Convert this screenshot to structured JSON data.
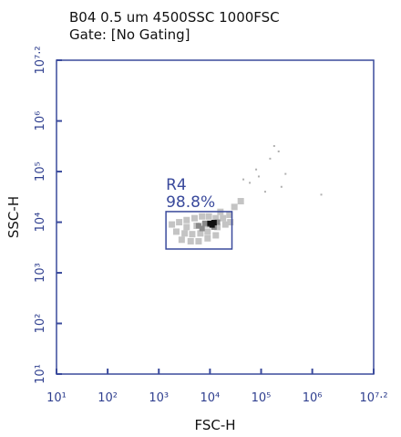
{
  "chart_data": {
    "type": "scatter",
    "title": "B04 0.5 um 4500SSC 1000FSC",
    "subtitle": "Gate: [No Gating]",
    "x_label": "FSC-H",
    "y_label": "SSC-H",
    "log_x": true,
    "log_y": true,
    "axis_color": "#3a4a9c",
    "xlim": [
      10,
      15848932
    ],
    "ylim": [
      10,
      15848932
    ],
    "xticks": [
      {
        "value": 10,
        "label": "10¹"
      },
      {
        "value": 100,
        "label": "10²"
      },
      {
        "value": 1000,
        "label": "10³"
      },
      {
        "value": 10000,
        "label": "10⁴"
      },
      {
        "value": 100000,
        "label": "10⁵"
      },
      {
        "value": 1000000,
        "label": "10⁶"
      },
      {
        "value": 15848932,
        "label": "10⁷·²"
      }
    ],
    "yticks": [
      {
        "value": 10,
        "label": "10¹"
      },
      {
        "value": 100,
        "label": "10²"
      },
      {
        "value": 1000,
        "label": "10³"
      },
      {
        "value": 10000,
        "label": "10⁴"
      },
      {
        "value": 100000,
        "label": "10⁵"
      },
      {
        "value": 1000000,
        "label": "10⁶"
      },
      {
        "value": 15848932,
        "label": "10⁷·²"
      }
    ],
    "layers": [
      {
        "color": "#c4c4c4",
        "size": 7,
        "x": [
          1800,
          2500,
          3500,
          5000,
          7000,
          9500,
          13000,
          18000,
          24000,
          2200,
          3200,
          4500,
          6500,
          9000,
          14000,
          20000,
          2800,
          4200,
          6000,
          9000,
          13000,
          3500,
          5500,
          8000,
          16000,
          30000,
          40000,
          25000
        ],
        "y": [
          9000,
          10000,
          11000,
          12000,
          13000,
          13000,
          12000,
          12000,
          14000,
          6500,
          6000,
          5800,
          6000,
          6500,
          8000,
          9000,
          4500,
          4200,
          4200,
          4800,
          5500,
          8000,
          8500,
          9000,
          16000,
          20000,
          26000,
          10000
        ]
      },
      {
        "color": "#8a8a8a",
        "size": 6,
        "x": [
          6000,
          8000,
          10000,
          14000,
          7000,
          12000
        ],
        "y": [
          8500,
          9500,
          9000,
          10000,
          7500,
          8000
        ]
      },
      {
        "color": "#111111",
        "size": 6,
        "x": [
          10000,
          12000,
          11000
        ],
        "y": [
          9500,
          9800,
          8800
        ]
      },
      {
        "color": "#b0b0b0",
        "size": 2,
        "x": [
          60000,
          90000,
          150000,
          180000,
          220000,
          300000,
          120000,
          1500000,
          80000,
          45000,
          250000
        ],
        "y": [
          60000,
          80000,
          180000,
          320000,
          250000,
          90000,
          40000,
          35000,
          110000,
          70000,
          50000
        ]
      }
    ],
    "gates": [
      {
        "name": "R4",
        "value": 98.8,
        "value_label": "98.8%",
        "x": [
          1380,
          26900
        ],
        "y": [
          2950,
          16200
        ]
      }
    ]
  }
}
